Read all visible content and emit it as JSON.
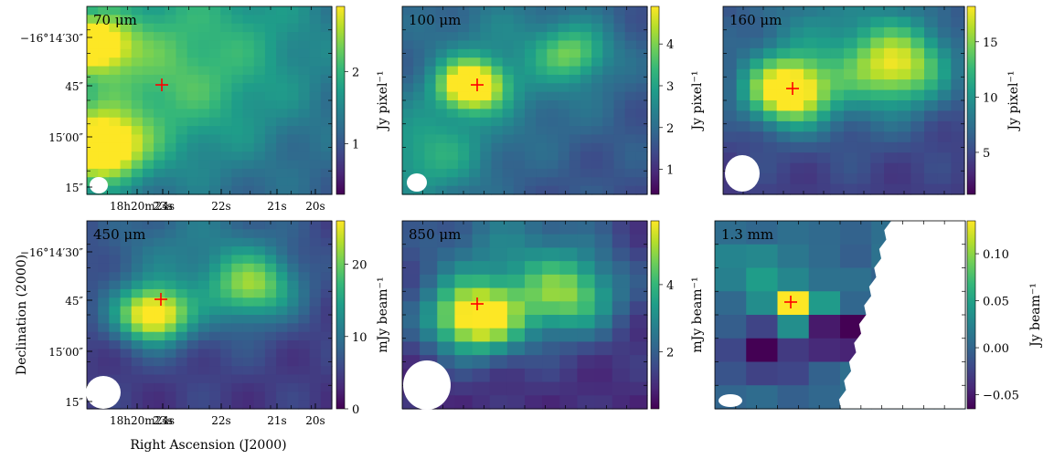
{
  "figure": {
    "x_axis_label": "Right Ascension (J2000)",
    "y_axis_label": "Declination (2000)",
    "marker": "source-position-cross"
  },
  "colors": {
    "viridis": [
      "#440154",
      "#482878",
      "#3e4989",
      "#31688e",
      "#26828e",
      "#1f9e89",
      "#35b779",
      "#6ece58",
      "#b5de2b",
      "#fde725"
    ],
    "cross": "#ff0000",
    "beam": "#ffffff",
    "blank": "#ffffff"
  },
  "chart_data": [
    {
      "type": "heatmap",
      "title": "70 μm",
      "colorbar": {
        "label": "Jy pixel⁻¹",
        "ticks": [
          "1",
          "2"
        ],
        "tick_values": [
          1,
          2
        ],
        "range": [
          0.3,
          2.9
        ]
      },
      "x_ticks": [
        "18h20m24s",
        "23s",
        "22s",
        "21s",
        "20s"
      ],
      "y_ticks": [
        "−16°14′30″",
        "45″",
        "15′00″",
        "15″"
      ],
      "peak": "far-left edge",
      "blobs": [
        [
          0.05,
          0.75,
          0.12,
          1.0
        ],
        [
          0.03,
          0.2,
          0.1,
          0.8
        ],
        [
          0.25,
          0.45,
          0.35,
          0.35
        ],
        [
          0.55,
          0.1,
          0.4,
          0.25
        ]
      ],
      "bias": 0.35
    },
    {
      "type": "heatmap",
      "title": "100 μm",
      "colorbar": {
        "label": "Jy pixel⁻¹",
        "ticks": [
          "1",
          "2",
          "3",
          "4"
        ],
        "tick_values": [
          1,
          2,
          3,
          4
        ],
        "range": [
          0.4,
          4.9
        ]
      },
      "peak": "at cross",
      "blobs": [
        [
          0.28,
          0.42,
          0.09,
          1.0
        ],
        [
          0.7,
          0.25,
          0.1,
          0.45
        ],
        [
          0.1,
          0.8,
          0.18,
          0.4
        ],
        [
          0.45,
          0.3,
          0.3,
          0.25
        ]
      ],
      "bias": 0.3
    },
    {
      "type": "heatmap",
      "title": "160 μm",
      "colorbar": {
        "label": "Jy pixel⁻¹",
        "ticks": [
          "5",
          "10",
          "15"
        ],
        "tick_values": [
          5,
          10,
          15
        ],
        "range": [
          1.2,
          18.2
        ]
      },
      "peak": "at cross",
      "blobs": [
        [
          0.27,
          0.45,
          0.12,
          1.0
        ],
        [
          0.72,
          0.32,
          0.14,
          0.7
        ],
        [
          0.5,
          0.2,
          0.35,
          0.35
        ]
      ],
      "bias": 0.2
    },
    {
      "type": "heatmap",
      "title": "450 μm",
      "colorbar": {
        "label": "mJy beam⁻¹",
        "ticks": [
          "0",
          "10",
          "20"
        ],
        "tick_values": [
          0,
          10,
          20
        ],
        "range": [
          0,
          26
        ]
      },
      "x_ticks": [
        "18h20m24s",
        "23s",
        "22s",
        "21s",
        "20s"
      ],
      "y_ticks": [
        "−16°14′30″",
        "45″",
        "15′00″",
        "15″"
      ],
      "peak": "at cross",
      "blobs": [
        [
          0.27,
          0.5,
          0.1,
          1.0
        ],
        [
          0.68,
          0.35,
          0.12,
          0.6
        ],
        [
          0.45,
          0.2,
          0.3,
          0.3
        ]
      ],
      "bias": 0.2
    },
    {
      "type": "heatmap",
      "title": "850 μm",
      "colorbar": {
        "label": "mJy beam⁻¹",
        "ticks": [
          "2",
          "4"
        ],
        "tick_values": [
          2,
          4
        ],
        "range": [
          0.3,
          5.9
        ]
      },
      "peak": "at cross",
      "blobs": [
        [
          0.3,
          0.52,
          0.13,
          1.0
        ],
        [
          0.68,
          0.4,
          0.14,
          0.6
        ],
        [
          0.45,
          0.2,
          0.3,
          0.35
        ]
      ],
      "bias": 0.15
    },
    {
      "type": "heatmap",
      "title": "1.3 mm",
      "colorbar": {
        "label": "Jy beam⁻¹",
        "ticks": [
          "−0.05",
          "0.00",
          "0.05",
          "0.10"
        ],
        "tick_values": [
          -0.05,
          0,
          0.05,
          0.1
        ],
        "range": [
          -0.065,
          0.135
        ]
      },
      "peak": "at cross",
      "blobs": [
        [
          0.33,
          0.45,
          0.07,
          1.0
        ],
        [
          0.2,
          0.7,
          0.1,
          -0.4
        ],
        [
          0.5,
          0.6,
          0.08,
          -0.6
        ],
        [
          0.15,
          0.25,
          0.08,
          0.3
        ]
      ],
      "bias": 0.4,
      "blank_region": "right side beyond diagonal edge"
    }
  ]
}
